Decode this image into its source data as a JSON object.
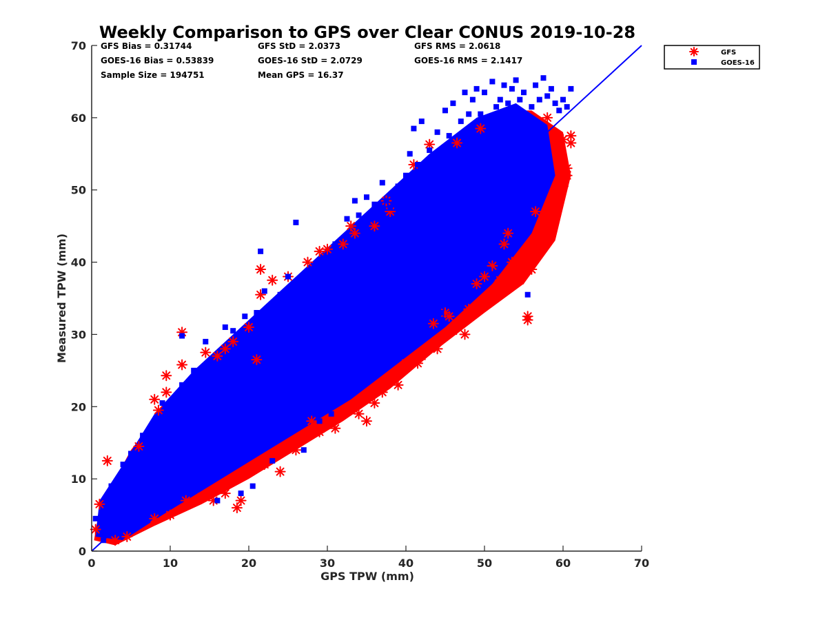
{
  "chart_data": {
    "type": "scatter",
    "title": "Weekly Comparison to GPS over Clear CONUS 2019-10-28",
    "xlabel": "GPS TPW (mm)",
    "ylabel": "Measured TPW (mm)",
    "xlim": [
      0,
      70
    ],
    "ylim": [
      0,
      70
    ],
    "xticks": [
      "0",
      "10",
      "20",
      "30",
      "40",
      "50",
      "60",
      "70"
    ],
    "yticks": [
      "0",
      "10",
      "20",
      "30",
      "40",
      "50",
      "60",
      "70"
    ],
    "grid": false,
    "legend_position": "outside-top-right",
    "stats": [
      "GFS Bias = 0.31744",
      "GFS StD = 2.0373",
      "GFS RMS = 2.0618",
      "GOES-16 Bias = 0.53839",
      "GOES-16 StD = 2.0729",
      "GOES-16 RMS = 2.1417",
      "Sample Size = 194751",
      "Mean GPS = 16.37"
    ],
    "reference_line": {
      "x": [
        0,
        70
      ],
      "y": [
        0,
        70
      ],
      "color": "#0000ff"
    },
    "series": [
      {
        "name": "GFS",
        "marker": "asterisk",
        "color": "#ff0000",
        "points": [
          [
            0.5,
            3.0
          ],
          [
            1.0,
            6.5
          ],
          [
            2.0,
            12.5
          ],
          [
            3.0,
            1.5
          ],
          [
            4.5,
            2.0
          ],
          [
            6.0,
            14.5
          ],
          [
            8.0,
            4.5
          ],
          [
            8.0,
            21.0
          ],
          [
            8.5,
            19.5
          ],
          [
            9.5,
            24.3
          ],
          [
            9.5,
            22.0
          ],
          [
            10.0,
            5.0
          ],
          [
            11.5,
            30.3
          ],
          [
            11.5,
            25.8
          ],
          [
            12.0,
            7.0
          ],
          [
            14.0,
            7.5
          ],
          [
            14.5,
            27.5
          ],
          [
            15.5,
            7.0
          ],
          [
            16.0,
            27.0
          ],
          [
            17.0,
            28.0
          ],
          [
            17.0,
            8.0
          ],
          [
            18.0,
            29.0
          ],
          [
            18.5,
            6.0
          ],
          [
            19.0,
            7.0
          ],
          [
            20.0,
            31.0
          ],
          [
            21.0,
            26.5
          ],
          [
            21.5,
            39.0
          ],
          [
            21.5,
            35.5
          ],
          [
            22.0,
            12.0
          ],
          [
            23.0,
            37.5
          ],
          [
            24.0,
            11.0
          ],
          [
            25.0,
            38.0
          ],
          [
            26.0,
            14.0
          ],
          [
            27.0,
            16.0
          ],
          [
            27.5,
            40.0
          ],
          [
            28.0,
            18.0
          ],
          [
            29.0,
            41.5
          ],
          [
            29.0,
            16.5
          ],
          [
            30.0,
            41.8
          ],
          [
            31.0,
            17.0
          ],
          [
            32.0,
            42.5
          ],
          [
            33.0,
            45.0
          ],
          [
            33.5,
            44.0
          ],
          [
            34.0,
            19.0
          ],
          [
            35.0,
            18.0
          ],
          [
            36.0,
            20.5
          ],
          [
            36.0,
            45.0
          ],
          [
            37.0,
            22.0
          ],
          [
            37.5,
            48.5
          ],
          [
            38.0,
            47.0
          ],
          [
            39.0,
            23.0
          ],
          [
            40.0,
            26.0
          ],
          [
            41.0,
            53.5
          ],
          [
            41.5,
            26.0
          ],
          [
            42.0,
            27.0
          ],
          [
            43.0,
            56.3
          ],
          [
            43.5,
            31.5
          ],
          [
            44.0,
            28.0
          ],
          [
            45.0,
            33.0
          ],
          [
            45.5,
            32.5
          ],
          [
            46.0,
            30.5
          ],
          [
            46.5,
            56.5
          ],
          [
            47.0,
            31.5
          ],
          [
            47.5,
            30.0
          ],
          [
            48.0,
            33.5
          ],
          [
            49.0,
            37.0
          ],
          [
            49.5,
            58.5
          ],
          [
            50.0,
            38.0
          ],
          [
            51.0,
            39.5
          ],
          [
            52.0,
            37.5
          ],
          [
            52.5,
            42.5
          ],
          [
            53.0,
            44.0
          ],
          [
            53.5,
            40.0
          ],
          [
            54.0,
            38.0
          ],
          [
            54.5,
            37.5
          ],
          [
            55.0,
            40.0
          ],
          [
            55.5,
            32.5
          ],
          [
            55.5,
            32.0
          ],
          [
            56.0,
            39.0
          ],
          [
            56.5,
            47.0
          ],
          [
            57.0,
            44.5
          ],
          [
            57.5,
            46.0
          ],
          [
            58.0,
            60.0
          ],
          [
            58.5,
            44.5
          ],
          [
            59.0,
            50.0
          ],
          [
            59.5,
            55.0
          ],
          [
            60.0,
            50.5
          ],
          [
            60.0,
            57.0
          ],
          [
            60.5,
            52.0
          ],
          [
            60.5,
            53.0
          ],
          [
            61.0,
            57.5
          ],
          [
            61.0,
            56.5
          ]
        ]
      },
      {
        "name": "GOES-16",
        "marker": "square",
        "color": "#0000ff",
        "points": [
          [
            0.5,
            4.5
          ],
          [
            1.5,
            1.5
          ],
          [
            2.5,
            9.0
          ],
          [
            4.0,
            12.0
          ],
          [
            5.0,
            13.5
          ],
          [
            6.5,
            16.0
          ],
          [
            8.0,
            17.5
          ],
          [
            9.0,
            20.5
          ],
          [
            10.5,
            21.0
          ],
          [
            11.5,
            23.0
          ],
          [
            11.5,
            29.8
          ],
          [
            13.0,
            25.0
          ],
          [
            14.5,
            29.0
          ],
          [
            16.0,
            7.0
          ],
          [
            17.0,
            31.0
          ],
          [
            18.0,
            30.5
          ],
          [
            19.0,
            8.0
          ],
          [
            19.5,
            32.5
          ],
          [
            20.5,
            9.0
          ],
          [
            21.0,
            33.0
          ],
          [
            21.5,
            41.5
          ],
          [
            22.0,
            36.0
          ],
          [
            23.0,
            12.5
          ],
          [
            24.0,
            35.5
          ],
          [
            25.0,
            38.0
          ],
          [
            26.0,
            45.5
          ],
          [
            27.0,
            14.0
          ],
          [
            28.0,
            38.0
          ],
          [
            29.0,
            18.0
          ],
          [
            29.5,
            40.5
          ],
          [
            30.5,
            19.0
          ],
          [
            31.0,
            42.5
          ],
          [
            32.0,
            21.0
          ],
          [
            32.5,
            46.0
          ],
          [
            33.0,
            22.5
          ],
          [
            33.5,
            48.5
          ],
          [
            34.0,
            46.5
          ],
          [
            35.0,
            49.0
          ],
          [
            35.5,
            25.0
          ],
          [
            36.0,
            48.0
          ],
          [
            37.0,
            51.0
          ],
          [
            37.5,
            48.5
          ],
          [
            38.0,
            47.5
          ],
          [
            39.0,
            50.5
          ],
          [
            39.5,
            28.0
          ],
          [
            40.0,
            52.0
          ],
          [
            40.5,
            55.0
          ],
          [
            41.0,
            58.5
          ],
          [
            41.5,
            53.5
          ],
          [
            42.0,
            59.5
          ],
          [
            42.5,
            31.0
          ],
          [
            43.0,
            55.5
          ],
          [
            44.0,
            58.0
          ],
          [
            44.5,
            33.0
          ],
          [
            45.0,
            61.0
          ],
          [
            45.5,
            57.5
          ],
          [
            46.0,
            62.0
          ],
          [
            47.0,
            59.5
          ],
          [
            47.5,
            63.5
          ],
          [
            48.0,
            60.5
          ],
          [
            48.5,
            62.5
          ],
          [
            49.0,
            64.0
          ],
          [
            49.5,
            60.5
          ],
          [
            50.0,
            63.5
          ],
          [
            50.5,
            39.0
          ],
          [
            51.0,
            65.0
          ],
          [
            51.5,
            61.5
          ],
          [
            52.0,
            62.5
          ],
          [
            52.5,
            64.5
          ],
          [
            53.0,
            62.0
          ],
          [
            53.5,
            64.0
          ],
          [
            54.0,
            65.2
          ],
          [
            54.5,
            62.5
          ],
          [
            55.0,
            63.5
          ],
          [
            55.5,
            35.5
          ],
          [
            56.0,
            61.5
          ],
          [
            56.5,
            64.5
          ],
          [
            57.0,
            62.5
          ],
          [
            57.5,
            65.5
          ],
          [
            58.0,
            63.0
          ],
          [
            58.5,
            64.0
          ],
          [
            59.0,
            62.0
          ],
          [
            59.5,
            61.0
          ],
          [
            60.0,
            62.5
          ],
          [
            60.5,
            61.5
          ],
          [
            61.0,
            64.0
          ]
        ]
      }
    ]
  }
}
